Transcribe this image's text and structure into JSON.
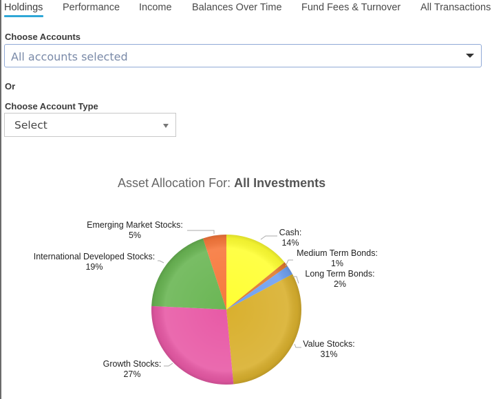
{
  "tabs": [
    {
      "label": "Holdings",
      "active": true
    },
    {
      "label": "Performance",
      "active": false
    },
    {
      "label": "Income",
      "active": false
    },
    {
      "label": "Balances Over Time",
      "active": false
    },
    {
      "label": "Fund Fees & Turnover",
      "active": false
    },
    {
      "label": "All Transactions",
      "active": false
    }
  ],
  "filters": {
    "accounts_label": "Choose Accounts",
    "accounts_value": "All accounts selected",
    "or_label": "Or",
    "account_type_label": "Choose Account Type",
    "account_type_value": "Select"
  },
  "chart": {
    "title_prefix": "Asset Allocation For: ",
    "title_bold": "All Investments"
  },
  "chart_data": {
    "type": "pie",
    "title": "Asset Allocation For: All Investments",
    "categories": [
      "Cash",
      "Medium Term Bonds",
      "Long Term Bonds",
      "Value Stocks",
      "Growth Stocks",
      "International Developed Stocks",
      "Emerging Market Stocks"
    ],
    "values": [
      14,
      1,
      2,
      31,
      27,
      19,
      5
    ],
    "unit": "%",
    "colors": [
      "#ffff33",
      "#e07a2e",
      "#6fa0f0",
      "#d9b02e",
      "#e85aa6",
      "#6ab654",
      "#f7783c"
    ],
    "labels": [
      {
        "name": "Cash:",
        "pct": "14%"
      },
      {
        "name": "Medium Term Bonds:",
        "pct": "1%"
      },
      {
        "name": "Long Term Bonds:",
        "pct": "2%"
      },
      {
        "name": "Value Stocks:",
        "pct": "31%"
      },
      {
        "name": "Growth Stocks:",
        "pct": "27%"
      },
      {
        "name": "International Developed Stocks:",
        "pct": "19%"
      },
      {
        "name": "Emerging Market Stocks:",
        "pct": "5%"
      }
    ]
  }
}
